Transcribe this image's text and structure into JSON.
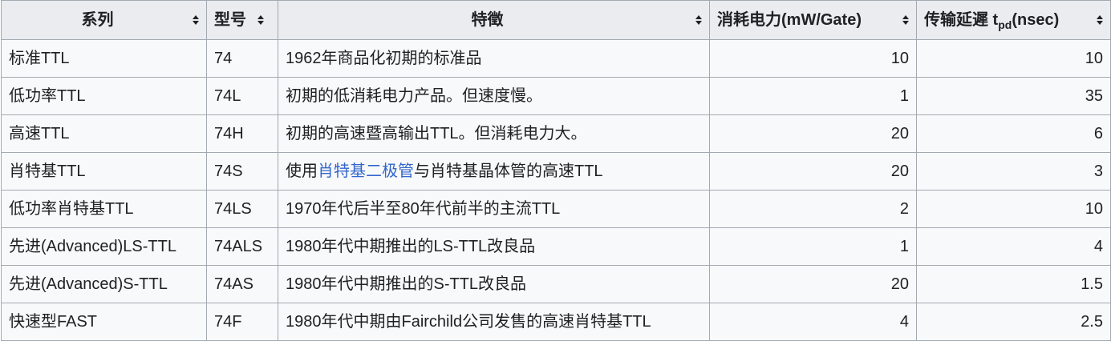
{
  "headers": [
    {
      "label": "系列"
    },
    {
      "label": "型号"
    },
    {
      "label": "特徵"
    },
    {
      "label": "消耗电力(mW/Gate)"
    },
    {
      "label": "传输延遲 t",
      "sub": "pd",
      "suffix": "(nsec)"
    }
  ],
  "rows": [
    {
      "series": "标准TTL",
      "model": "74",
      "feature": "1962年商品化初期的标准品",
      "power": "10",
      "delay": "10"
    },
    {
      "series": "低功率TTL",
      "model": "74L",
      "feature": "初期的低消耗电力产品。但速度慢。",
      "power": "1",
      "delay": "35"
    },
    {
      "series": "高速TTL",
      "model": "74H",
      "feature": "初期的高速暨高输出TTL。但消耗电力大。",
      "power": "20",
      "delay": "6"
    },
    {
      "series": "肖特基TTL",
      "model": "74S",
      "feature_pre": "使用",
      "feature_link": "肖特基二极管",
      "feature_post": "与肖特基晶体管的高速TTL",
      "power": "20",
      "delay": "3"
    },
    {
      "series": "低功率肖特基TTL",
      "model": "74LS",
      "feature": "1970年代后半至80年代前半的主流TTL",
      "power": "2",
      "delay": "10"
    },
    {
      "series": "先进(Advanced)LS-TTL",
      "model": "74ALS",
      "feature": "1980年代中期推出的LS-TTL改良品",
      "power": "1",
      "delay": "4"
    },
    {
      "series": "先进(Advanced)S-TTL",
      "model": "74AS",
      "feature": "1980年代中期推出的S-TTL改良品",
      "power": "20",
      "delay": "1.5"
    },
    {
      "series": "快速型FAST",
      "model": "74F",
      "feature": "1980年代中期由Fairchild公司发售的高速肖特基TTL",
      "power": "4",
      "delay": "2.5"
    }
  ],
  "colors": {
    "header_bg": "#eaecf0",
    "cell_bg": "#f8f9fa",
    "border": "#a2a9b1",
    "link": "#3366cc"
  },
  "icons": {
    "sort": "sort-up-down-icon"
  }
}
